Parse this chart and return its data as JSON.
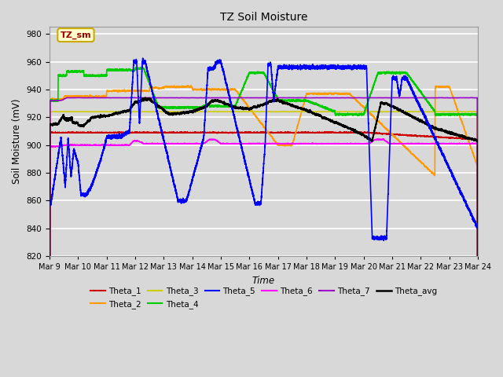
{
  "title": "TZ Soil Moisture",
  "ylabel": "Soil Moisture (mV)",
  "xlabel": "Time",
  "ylim": [
    820,
    985
  ],
  "yticks": [
    820,
    840,
    860,
    880,
    900,
    920,
    940,
    960,
    980
  ],
  "date_labels": [
    "Mar 9",
    "Mar 10",
    "Mar 11",
    "Mar 12",
    "Mar 13",
    "Mar 14",
    "Mar 15",
    "Mar 16",
    "Mar 17",
    "Mar 18",
    "Mar 19",
    "Mar 20",
    "Mar 21",
    "Mar 22",
    "Mar 23",
    "Mar 24"
  ],
  "background_color": "#d8d8d8",
  "plot_bg_color": "#d8d8d8",
  "grid_color": "#ffffff",
  "legend_box_color": "#ffffcc",
  "legend_box_edge": "#ccaa00",
  "annotation_text": "TZ_sm",
  "annotation_color": "#990000",
  "series": {
    "Theta_1": {
      "color": "#cc0000",
      "lw": 1.2
    },
    "Theta_2": {
      "color": "#ff9900",
      "lw": 1.2
    },
    "Theta_3": {
      "color": "#cccc00",
      "lw": 1.2
    },
    "Theta_4": {
      "color": "#00cc00",
      "lw": 1.2
    },
    "Theta_5": {
      "color": "#0000ff",
      "lw": 1.2
    },
    "Theta_6": {
      "color": "#ff00ff",
      "lw": 1.2
    },
    "Theta_7": {
      "color": "#9900cc",
      "lw": 1.2
    },
    "Theta_avg": {
      "color": "#000000",
      "lw": 1.5
    }
  }
}
